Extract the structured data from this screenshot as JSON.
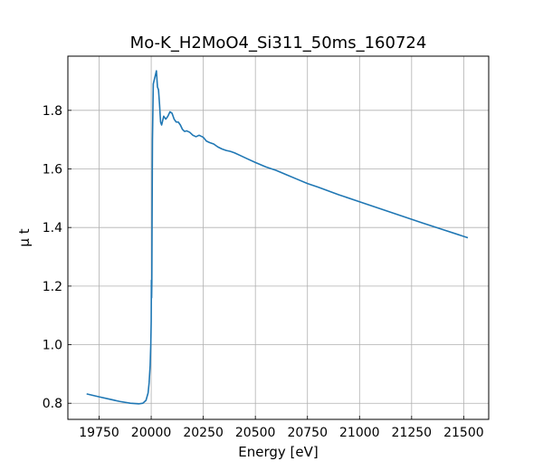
{
  "chart_data": {
    "type": "line",
    "title": "Mo-K_H2MoO4_Si311_50ms_160724",
    "xlabel": "Energy [eV]",
    "ylabel": "μ t",
    "xlim": [
      19600,
      21620
    ],
    "ylim": [
      0.745,
      1.985
    ],
    "xticks": [
      19750,
      20000,
      20250,
      20500,
      20750,
      21000,
      21250,
      21500
    ],
    "yticks": [
      0.8,
      1.0,
      1.2,
      1.4,
      1.6,
      1.8
    ],
    "xtick_labels": [
      "19750",
      "20000",
      "20250",
      "20500",
      "20750",
      "21000",
      "21250",
      "21500"
    ],
    "ytick_labels": [
      "0.8",
      "1.0",
      "1.2",
      "1.4",
      "1.6",
      "1.8"
    ],
    "grid": true,
    "series": [
      {
        "color": "#1f77b4",
        "x": [
          19690,
          19750,
          19800,
          19850,
          19900,
          19940,
          19960,
          19975,
          19985,
          19990,
          19995,
          19998,
          20000,
          20001,
          20002,
          20003,
          20004,
          20006,
          20010,
          20015,
          20020,
          20025,
          20030,
          20035,
          20040,
          20045,
          20050,
          20055,
          20060,
          20065,
          20070,
          20080,
          20090,
          20100,
          20110,
          20120,
          20130,
          20140,
          20150,
          20160,
          20170,
          20185,
          20200,
          20215,
          20230,
          20250,
          20265,
          20280,
          20300,
          20320,
          20340,
          20360,
          20380,
          20400,
          20430,
          20460,
          20500,
          20550,
          20600,
          20650,
          20700,
          20750,
          20800,
          20850,
          20900,
          21000,
          21100,
          21200,
          21300,
          21400,
          21520
        ],
        "y": [
          0.832,
          0.822,
          0.814,
          0.806,
          0.8,
          0.798,
          0.8,
          0.81,
          0.835,
          0.87,
          0.93,
          1.0,
          1.08,
          1.22,
          1.16,
          1.215,
          1.4,
          1.7,
          1.89,
          1.905,
          1.92,
          1.935,
          1.88,
          1.87,
          1.82,
          1.76,
          1.75,
          1.765,
          1.78,
          1.775,
          1.77,
          1.78,
          1.795,
          1.79,
          1.77,
          1.76,
          1.76,
          1.75,
          1.735,
          1.728,
          1.73,
          1.725,
          1.715,
          1.71,
          1.715,
          1.708,
          1.695,
          1.69,
          1.685,
          1.675,
          1.668,
          1.663,
          1.66,
          1.655,
          1.645,
          1.635,
          1.622,
          1.607,
          1.595,
          1.58,
          1.565,
          1.55,
          1.538,
          1.525,
          1.512,
          1.488,
          1.464,
          1.44,
          1.416,
          1.393,
          1.365
        ]
      }
    ]
  }
}
